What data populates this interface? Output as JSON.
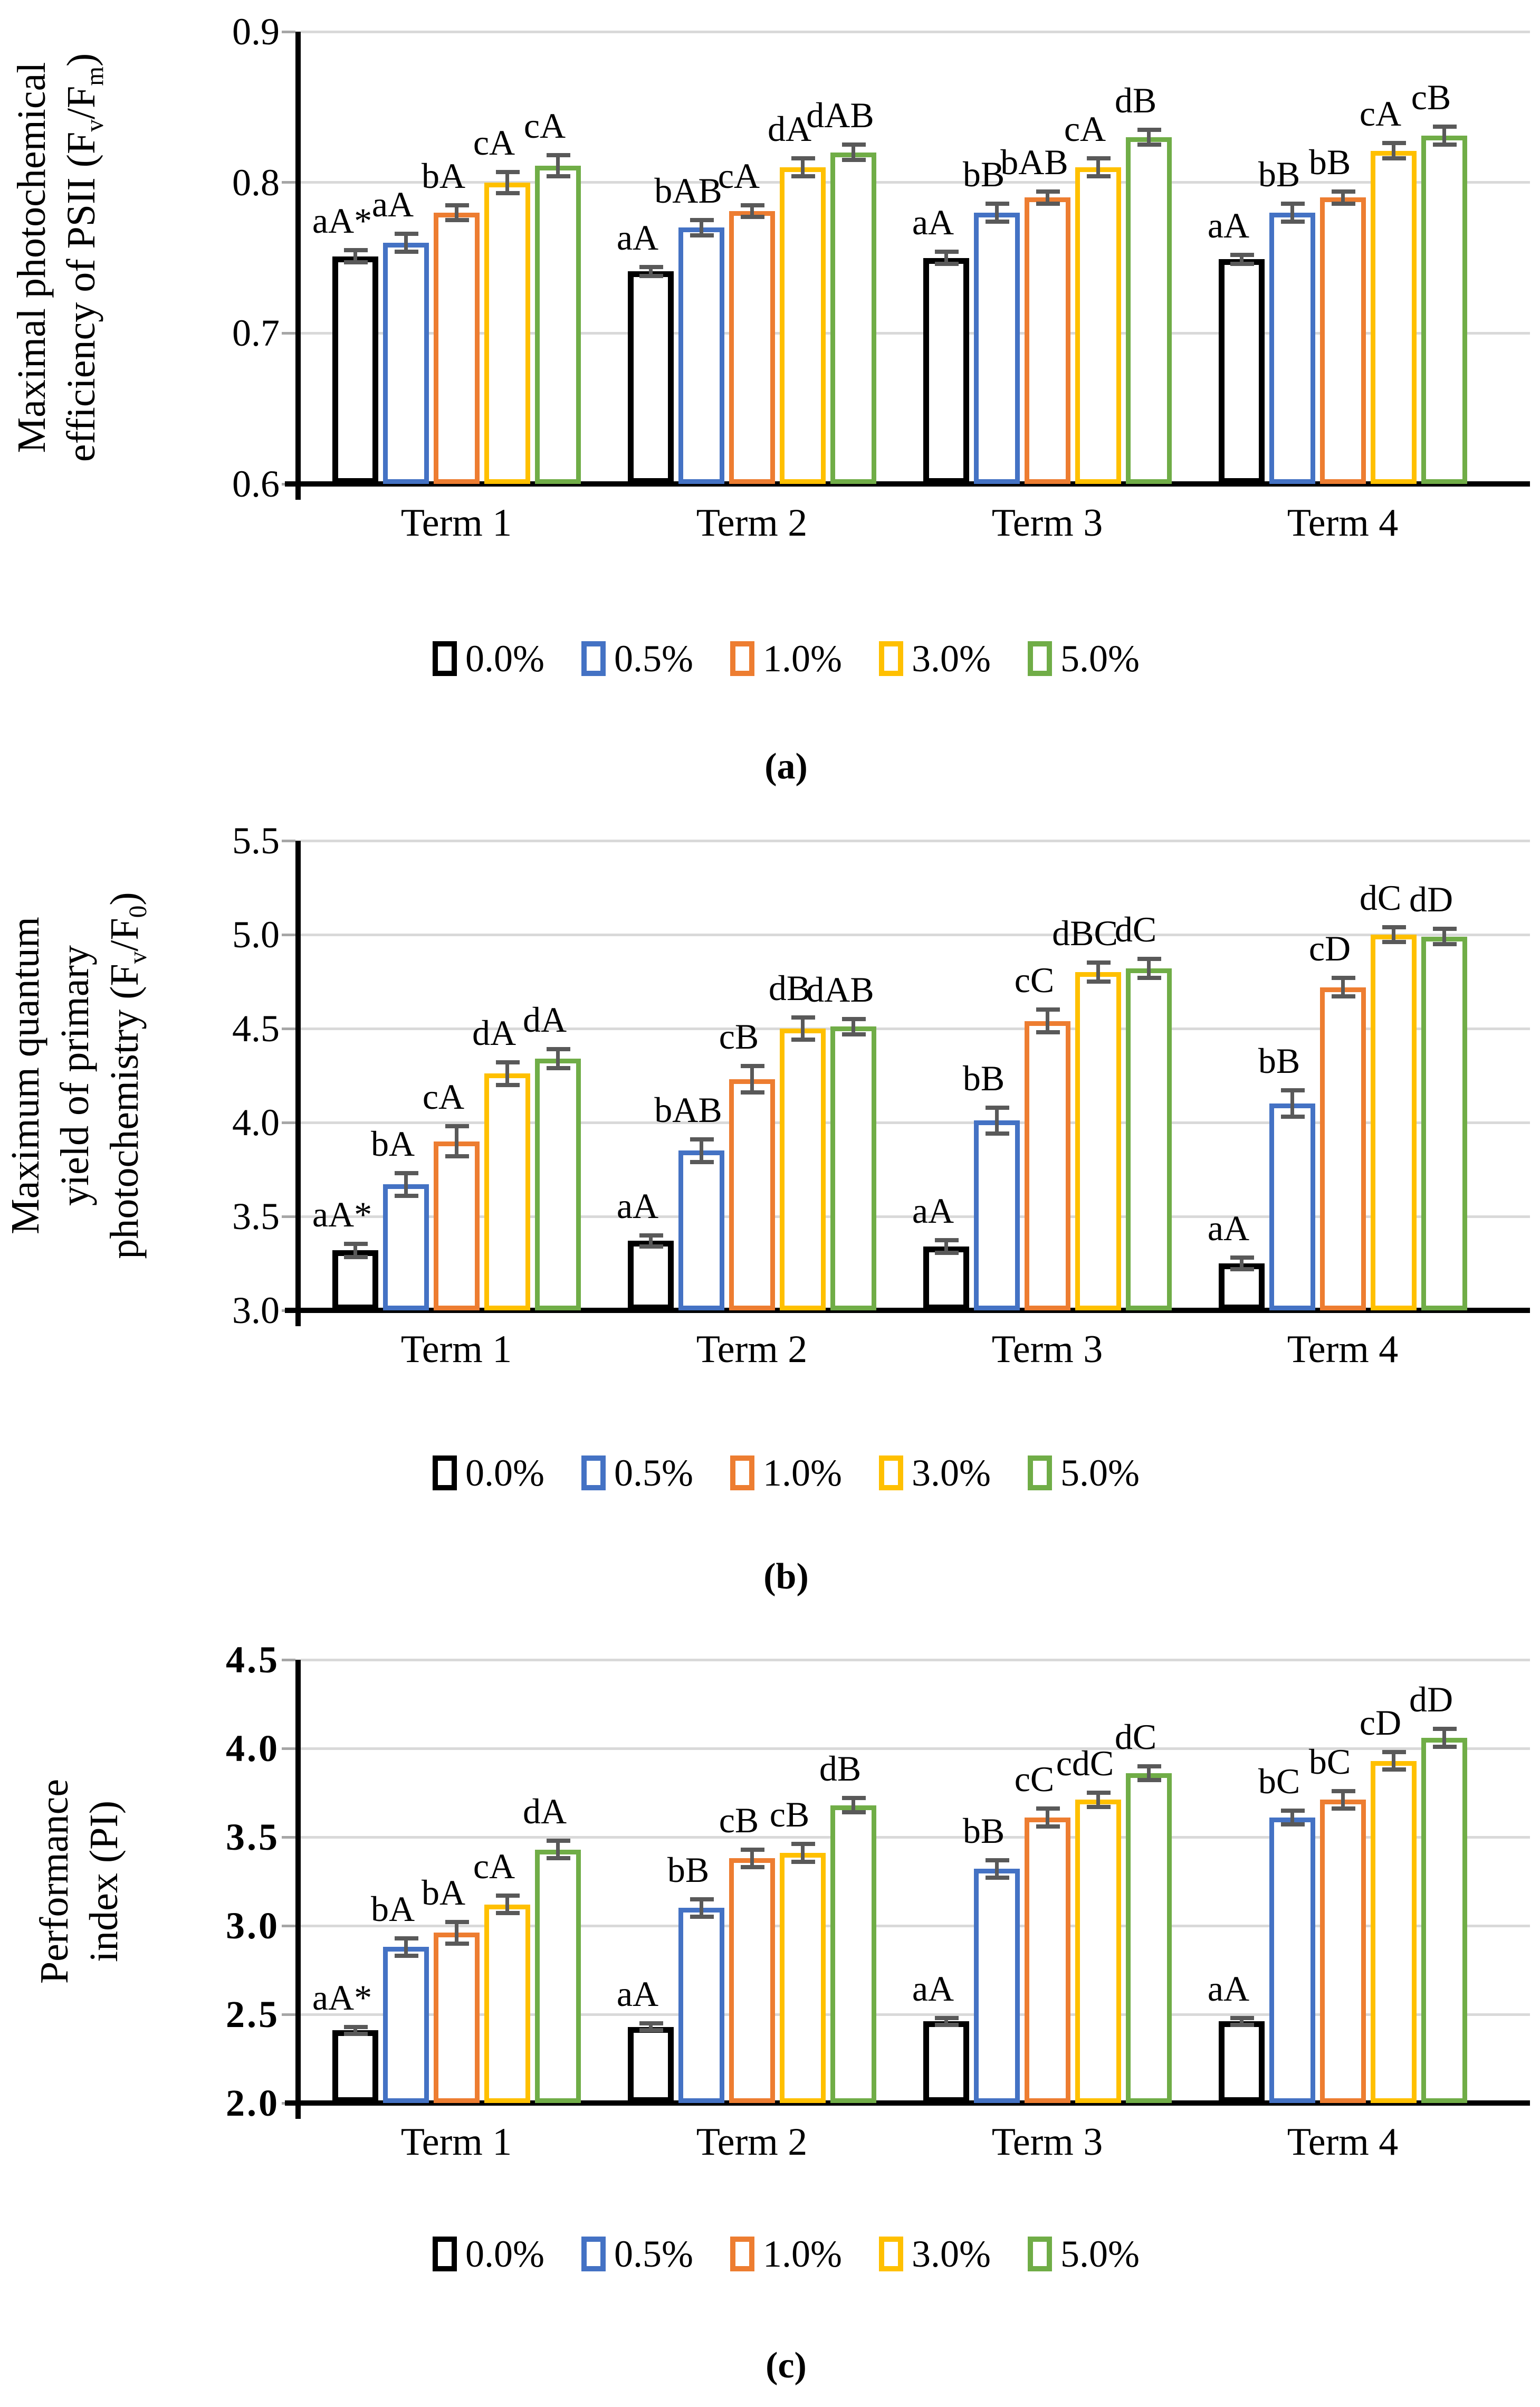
{
  "legend": {
    "items": [
      {
        "label": "0.0%",
        "color": "#000000"
      },
      {
        "label": "0.5%",
        "color": "#4472C4"
      },
      {
        "label": "1.0%",
        "color": "#ED7D31"
      },
      {
        "label": "3.0%",
        "color": "#FFC000"
      },
      {
        "label": "5.0%",
        "color": "#70AD47"
      }
    ]
  },
  "style": {
    "grid_color": "#D9D9D9",
    "error_bar_color": "#595959",
    "axis_color": "#000000",
    "bar_fill": "#FFFFFF"
  },
  "chart_data": [
    {
      "id": "a",
      "type": "bar",
      "caption": "(a)",
      "ylabel_lines": [
        [
          {
            "t": "Maximal photochemical"
          }
        ],
        [
          {
            "t": "efficiency of PSII (F"
          },
          {
            "t": "v",
            "sub": true
          },
          {
            "t": "/F"
          },
          {
            "t": "m",
            "sub": true
          },
          {
            "t": ")"
          }
        ]
      ],
      "ylim": [
        0.6,
        0.9
      ],
      "yticks": [
        {
          "v": 0.9,
          "label": "0.9"
        },
        {
          "v": 0.8,
          "label": "0.8"
        },
        {
          "v": 0.7,
          "label": "0.7"
        },
        {
          "v": 0.6,
          "label": "0.6"
        }
      ],
      "categories": [
        "Term 1",
        "Term 2",
        "Term 3",
        "Term 4"
      ],
      "series": [
        {
          "name": "0.0%",
          "color": "#000000",
          "values": [
            0.751,
            0.741,
            0.75,
            0.749
          ],
          "errors": [
            0.004,
            0.003,
            0.004,
            0.003
          ],
          "sig_labels": [
            "aA*",
            "aA",
            "aA",
            "aA"
          ]
        },
        {
          "name": "0.5%",
          "color": "#4472C4",
          "values": [
            0.76,
            0.77,
            0.78,
            0.78
          ],
          "errors": [
            0.006,
            0.005,
            0.006,
            0.006
          ],
          "sig_labels": [
            "aA",
            "bAB",
            "bB",
            "bB"
          ]
        },
        {
          "name": "1.0%",
          "color": "#ED7D31",
          "values": [
            0.78,
            0.781,
            0.79,
            0.79
          ],
          "errors": [
            0.005,
            0.004,
            0.004,
            0.004
          ],
          "sig_labels": [
            "bA",
            "cA",
            "bAB",
            "bB"
          ]
        },
        {
          "name": "3.0%",
          "color": "#FFC000",
          "values": [
            0.8,
            0.81,
            0.81,
            0.821
          ],
          "errors": [
            0.007,
            0.006,
            0.006,
            0.005
          ],
          "sig_labels": [
            "cA",
            "dA",
            "cA",
            "cA"
          ]
        },
        {
          "name": "5.0%",
          "color": "#70AD47",
          "values": [
            0.811,
            0.82,
            0.83,
            0.831
          ],
          "errors": [
            0.007,
            0.005,
            0.005,
            0.006
          ],
          "sig_labels": [
            "cA",
            "dAB",
            "dB",
            "cB"
          ]
        }
      ]
    },
    {
      "id": "b",
      "type": "bar",
      "caption": "(b)",
      "ylabel_lines": [
        [
          {
            "t": "Maximum quantum"
          }
        ],
        [
          {
            "t": "yield of primary"
          }
        ],
        [
          {
            "t": "photochemistry (F"
          },
          {
            "t": "v",
            "sub": true
          },
          {
            "t": "/F"
          },
          {
            "t": "0",
            "sub": true
          },
          {
            "t": ")"
          }
        ]
      ],
      "ylim": [
        3.0,
        5.5
      ],
      "yticks": [
        {
          "v": 5.5,
          "label": "5.5"
        },
        {
          "v": 5.0,
          "label": "5.0"
        },
        {
          "v": 4.5,
          "label": "4.5"
        },
        {
          "v": 4.0,
          "label": "4.0"
        },
        {
          "v": 3.5,
          "label": "3.5"
        },
        {
          "v": 3.0,
          "label": "3.0"
        }
      ],
      "categories": [
        "Term 1",
        "Term 2",
        "Term 3",
        "Term 4"
      ],
      "series": [
        {
          "name": "0.0%",
          "color": "#000000",
          "values": [
            3.32,
            3.37,
            3.34,
            3.25
          ],
          "errors": [
            0.035,
            0.03,
            0.035,
            0.03
          ],
          "sig_labels": [
            "aA*",
            "aA",
            "aA",
            "aA"
          ]
        },
        {
          "name": "0.5%",
          "color": "#4472C4",
          "values": [
            3.67,
            3.85,
            4.01,
            4.1
          ],
          "errors": [
            0.06,
            0.06,
            0.07,
            0.07
          ],
          "sig_labels": [
            "bA",
            "bAB",
            "bB",
            "bB"
          ]
        },
        {
          "name": "1.0%",
          "color": "#ED7D31",
          "values": [
            3.9,
            4.23,
            4.54,
            4.72
          ],
          "errors": [
            0.08,
            0.07,
            0.06,
            0.05
          ],
          "sig_labels": [
            "cA",
            "cB",
            "cC",
            "cD"
          ]
        },
        {
          "name": "3.0%",
          "color": "#FFC000",
          "values": [
            4.26,
            4.5,
            4.8,
            5.0
          ],
          "errors": [
            0.06,
            0.06,
            0.05,
            0.04
          ],
          "sig_labels": [
            "dA",
            "dB",
            "dBC",
            "dC"
          ]
        },
        {
          "name": "5.0%",
          "color": "#70AD47",
          "values": [
            4.34,
            4.51,
            4.82,
            4.99
          ],
          "errors": [
            0.05,
            0.04,
            0.05,
            0.04
          ],
          "sig_labels": [
            "dA",
            "dAB",
            "dC",
            "dD"
          ]
        }
      ]
    },
    {
      "id": "c",
      "type": "bar",
      "caption": "(c)",
      "ylabel_lines": [
        [
          {
            "t": "Performance"
          }
        ],
        [
          {
            "t": "index (PI)"
          }
        ]
      ],
      "ylim": [
        2.0,
        4.5
      ],
      "yticks": [
        {
          "v": 4.5,
          "label": "4.5"
        },
        {
          "v": 4.0,
          "label": "4.0"
        },
        {
          "v": 3.5,
          "label": "3.5"
        },
        {
          "v": 3.0,
          "label": "3.0"
        },
        {
          "v": 2.5,
          "label": "2.5"
        },
        {
          "v": 2.0,
          "label": "2.0"
        }
      ],
      "categories": [
        "Term 1",
        "Term 2",
        "Term 3",
        "Term 4"
      ],
      "series": [
        {
          "name": "0.0%",
          "color": "#000000",
          "values": [
            2.41,
            2.43,
            2.46,
            2.46
          ],
          "errors": [
            0.02,
            0.02,
            0.02,
            0.02
          ],
          "sig_labels": [
            "aA*",
            "aA",
            "aA",
            "aA"
          ]
        },
        {
          "name": "0.5%",
          "color": "#4472C4",
          "values": [
            2.88,
            3.1,
            3.32,
            3.61
          ],
          "errors": [
            0.05,
            0.05,
            0.05,
            0.04
          ],
          "sig_labels": [
            "bA",
            "bB",
            "bB",
            "bC"
          ]
        },
        {
          "name": "1.0%",
          "color": "#ED7D31",
          "values": [
            2.96,
            3.38,
            3.61,
            3.71
          ],
          "errors": [
            0.06,
            0.05,
            0.05,
            0.05
          ],
          "sig_labels": [
            "bA",
            "cB",
            "cC",
            "bC"
          ]
        },
        {
          "name": "3.0%",
          "color": "#FFC000",
          "values": [
            3.12,
            3.41,
            3.71,
            3.93
          ],
          "errors": [
            0.05,
            0.05,
            0.04,
            0.05
          ],
          "sig_labels": [
            "cA",
            "cB",
            "cdC",
            "cD"
          ]
        },
        {
          "name": "5.0%",
          "color": "#70AD47",
          "values": [
            3.43,
            3.68,
            3.86,
            4.06
          ],
          "errors": [
            0.05,
            0.04,
            0.04,
            0.05
          ],
          "sig_labels": [
            "dA",
            "dB",
            "dC",
            "dD"
          ]
        }
      ]
    }
  ]
}
